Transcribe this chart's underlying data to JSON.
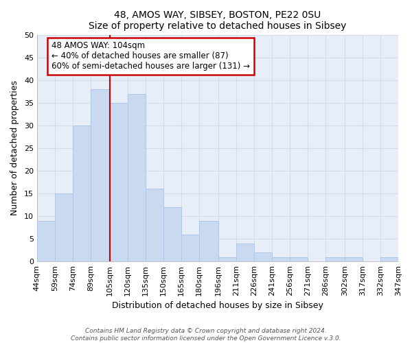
{
  "title": "48, AMOS WAY, SIBSEY, BOSTON, PE22 0SU",
  "subtitle": "Size of property relative to detached houses in Sibsey",
  "xlabel": "Distribution of detached houses by size in Sibsey",
  "ylabel": "Number of detached properties",
  "bar_color": "#c8d9f0",
  "bar_edge_color": "#aec6e8",
  "bins": [
    44,
    59,
    74,
    89,
    105,
    120,
    135,
    150,
    165,
    180,
    196,
    211,
    226,
    241,
    256,
    271,
    286,
    302,
    317,
    332,
    347
  ],
  "counts": [
    9,
    15,
    30,
    38,
    35,
    37,
    16,
    12,
    6,
    9,
    1,
    4,
    2,
    1,
    1,
    0,
    1,
    1,
    0,
    1
  ],
  "tick_labels": [
    "44sqm",
    "59sqm",
    "74sqm",
    "89sqm",
    "105sqm",
    "120sqm",
    "135sqm",
    "150sqm",
    "165sqm",
    "180sqm",
    "196sqm",
    "211sqm",
    "226sqm",
    "241sqm",
    "256sqm",
    "271sqm",
    "286sqm",
    "302sqm",
    "317sqm",
    "332sqm",
    "347sqm"
  ],
  "property_line_x": 105,
  "annotation_line1": "48 AMOS WAY: 104sqm",
  "annotation_line2": "← 40% of detached houses are smaller (87)",
  "annotation_line3": "60% of semi-detached houses are larger (131) →",
  "footer1": "Contains HM Land Registry data © Crown copyright and database right 2024.",
  "footer2": "Contains public sector information licensed under the Open Government Licence v.3.0.",
  "ylim": [
    0,
    50
  ],
  "grid_color": "#d4dce8",
  "annotation_box_color": "#ffffff",
  "annotation_box_edge_color": "#cc0000",
  "property_line_color": "#cc0000",
  "fig_background_color": "#ffffff",
  "plot_background_color": "#e8eef8"
}
